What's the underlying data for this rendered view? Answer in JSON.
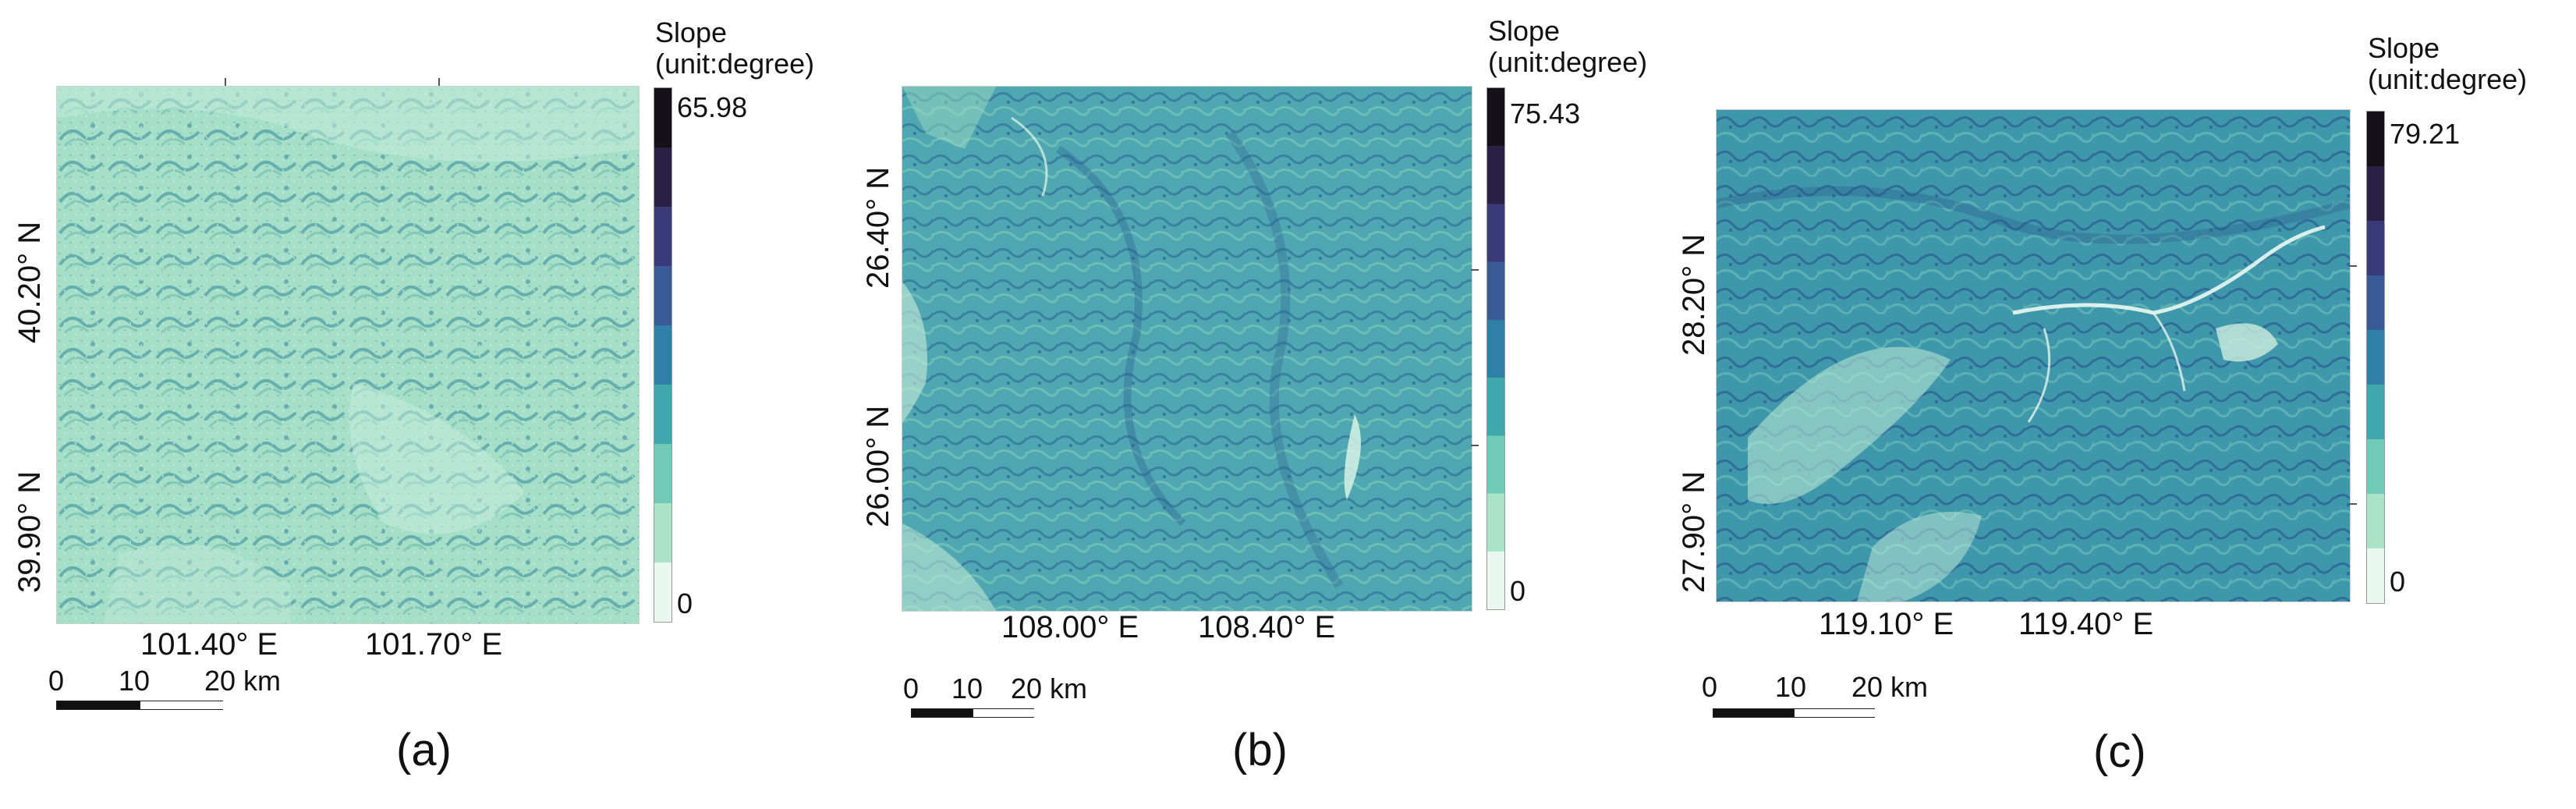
{
  "panels": [
    {
      "id": "a",
      "label": "(a)",
      "legend_title_1": "Slope",
      "legend_title_2": "(unit:degree)",
      "max_value": "65.98",
      "min_value": "0",
      "lat_labels": [
        "40.20° N",
        "39.90° N"
      ],
      "lon_labels": [
        "101.40° E",
        "101.70° E"
      ],
      "scale_labels": [
        "0",
        "10",
        "20 km"
      ],
      "terrain": "desert dune field",
      "base_color": "#9fdcc4"
    },
    {
      "id": "b",
      "label": "(b)",
      "legend_title_1": "Slope",
      "legend_title_2": "(unit:degree)",
      "max_value": "75.43",
      "min_value": "0",
      "lat_labels": [
        "26.40° N",
        "26.00° N"
      ],
      "lon_labels": [
        "108.00° E",
        "108.40° E"
      ],
      "scale_labels": [
        "0",
        "10",
        "20 km"
      ],
      "terrain": "mountainous",
      "base_color": "#4aa3b0"
    },
    {
      "id": "c",
      "label": "(c)",
      "legend_title_1": "Slope",
      "legend_title_2": "(unit:degree)",
      "max_value": "79.21",
      "min_value": "0",
      "lat_labels": [
        "28.20° N",
        "27.90° N"
      ],
      "lon_labels": [
        "119.10° E",
        "119.40° E"
      ],
      "scale_labels": [
        "0",
        "10",
        "20 km"
      ],
      "terrain": "mountainous with rivers",
      "base_color": "#3f97ad"
    }
  ],
  "colormap": [
    "#e8f8f0",
    "#a9e4c8",
    "#6fcbb5",
    "#3fa8ad",
    "#2f7fa6",
    "#3a5a97",
    "#3b3a78",
    "#2a1f45",
    "#151018"
  ]
}
